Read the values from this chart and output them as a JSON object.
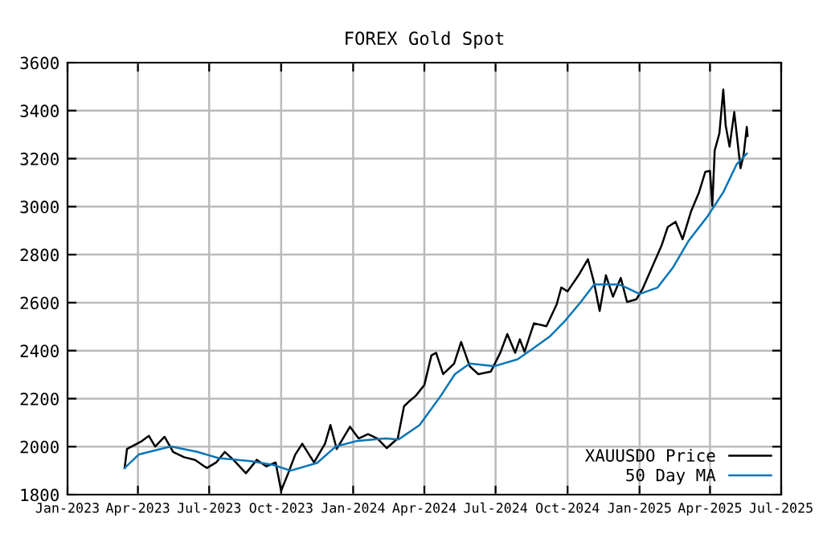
{
  "chart_data": {
    "type": "line",
    "title": "FOREX Gold Spot",
    "series": [
      {
        "name": "XAUUSDO Price",
        "color": "#000000",
        "x": [
          "2023-03-15",
          "2023-03-18",
          "2023-04-06",
          "2023-04-15",
          "2023-04-23",
          "2023-05-05",
          "2023-05-16",
          "2023-05-30",
          "2023-06-13",
          "2023-06-28",
          "2023-07-10",
          "2023-07-21",
          "2023-08-01",
          "2023-08-17",
          "2023-08-31",
          "2023-09-12",
          "2023-09-24",
          "2023-10-01",
          "2023-10-10",
          "2023-10-19",
          "2023-10-28",
          "2023-11-12",
          "2023-11-26",
          "2023-12-03",
          "2023-12-11",
          "2023-12-28",
          "2024-01-08",
          "2024-01-20",
          "2024-02-01",
          "2024-02-13",
          "2024-02-27",
          "2024-03-06",
          "2024-03-13",
          "2024-03-21",
          "2024-04-01",
          "2024-04-10",
          "2024-04-16",
          "2024-04-25",
          "2024-05-09",
          "2024-05-18",
          "2024-05-29",
          "2024-06-09",
          "2024-06-25",
          "2024-07-07",
          "2024-07-16",
          "2024-07-26",
          "2024-08-01",
          "2024-08-07",
          "2024-08-19",
          "2024-09-04",
          "2024-09-17",
          "2024-09-23",
          "2024-10-01",
          "2024-10-15",
          "2024-10-27",
          "2024-11-04",
          "2024-11-11",
          "2024-11-19",
          "2024-11-28",
          "2024-12-08",
          "2024-12-16",
          "2024-12-28",
          "2025-01-05",
          "2025-01-17",
          "2025-01-29",
          "2025-02-06",
          "2025-02-16",
          "2025-02-25",
          "2025-03-08",
          "2025-03-18",
          "2025-03-26",
          "2025-04-01",
          "2025-04-04",
          "2025-04-07",
          "2025-04-13",
          "2025-04-18",
          "2025-04-21",
          "2025-04-26",
          "2025-05-02",
          "2025-05-10",
          "2025-05-14",
          "2025-05-18",
          "2025-05-19"
        ],
        "values": [
          1911,
          1990,
          2023,
          2045,
          2000,
          2041,
          1978,
          1956,
          1945,
          1911,
          1934,
          1978,
          1945,
          1889,
          1945,
          1918,
          1934,
          1816,
          1889,
          1967,
          2012,
          1934,
          2012,
          2090,
          1990,
          2083,
          2034,
          2052,
          2034,
          1994,
          2034,
          2168,
          2190,
          2212,
          2257,
          2380,
          2391,
          2302,
          2346,
          2436,
          2335,
          2302,
          2313,
          2391,
          2469,
          2391,
          2447,
          2395,
          2514,
          2502,
          2592,
          2663,
          2647,
          2714,
          2781,
          2681,
          2565,
          2714,
          2625,
          2703,
          2603,
          2614,
          2658,
          2748,
          2837,
          2915,
          2937,
          2864,
          2982,
          3060,
          3145,
          3149,
          3004,
          3234,
          3305,
          3488,
          3339,
          3250,
          3394,
          3160,
          3216,
          3332,
          3294
        ]
      },
      {
        "name": "50 Day MA",
        "color": "#0a75b8",
        "x": [
          "2023-03-15",
          "2023-04-02",
          "2023-05-13",
          "2023-06-16",
          "2023-07-13",
          "2023-08-23",
          "2023-09-22",
          "2023-10-13",
          "2023-11-16",
          "2023-12-10",
          "2024-01-05",
          "2024-02-11",
          "2024-02-28",
          "2024-03-26",
          "2024-04-22",
          "2024-05-10",
          "2024-05-29",
          "2024-06-29",
          "2024-07-29",
          "2024-08-15",
          "2024-09-08",
          "2024-09-28",
          "2024-10-18",
          "2024-11-04",
          "2024-12-05",
          "2024-12-15",
          "2025-01-01",
          "2025-01-24",
          "2025-02-13",
          "2025-03-05",
          "2025-03-29",
          "2025-04-18",
          "2025-05-05",
          "2025-05-18"
        ],
        "values": [
          1911,
          1967,
          2001,
          1978,
          1952,
          1940,
          1923,
          1900,
          1932,
          2001,
          2023,
          2034,
          2030,
          2090,
          2212,
          2302,
          2346,
          2335,
          2364,
          2402,
          2458,
          2525,
          2603,
          2676,
          2676,
          2663,
          2636,
          2663,
          2748,
          2859,
          2960,
          3060,
          3176,
          3221
        ]
      }
    ],
    "xlim": [
      "2023-01-01",
      "2025-07-01"
    ],
    "xticks": [
      {
        "value": "2023-01-01",
        "label": "Jan-2023"
      },
      {
        "value": "2023-04-01",
        "label": "Apr-2023"
      },
      {
        "value": "2023-07-01",
        "label": "Jul-2023"
      },
      {
        "value": "2023-10-01",
        "label": "Oct-2023"
      },
      {
        "value": "2024-01-01",
        "label": "Jan-2024"
      },
      {
        "value": "2024-04-01",
        "label": "Apr-2024"
      },
      {
        "value": "2024-07-01",
        "label": "Jul-2024"
      },
      {
        "value": "2024-10-01",
        "label": "Oct-2024"
      },
      {
        "value": "2025-01-01",
        "label": "Jan-2025"
      },
      {
        "value": "2025-04-01",
        "label": "Apr-2025"
      },
      {
        "value": "2025-07-01",
        "label": "Jul-2025"
      }
    ],
    "ylim": [
      1800,
      3600
    ],
    "yticks": [
      1800,
      2000,
      2200,
      2400,
      2600,
      2800,
      3000,
      3200,
      3400,
      3600
    ],
    "grid": true,
    "legend": "bottom right",
    "line_style": "solid"
  }
}
